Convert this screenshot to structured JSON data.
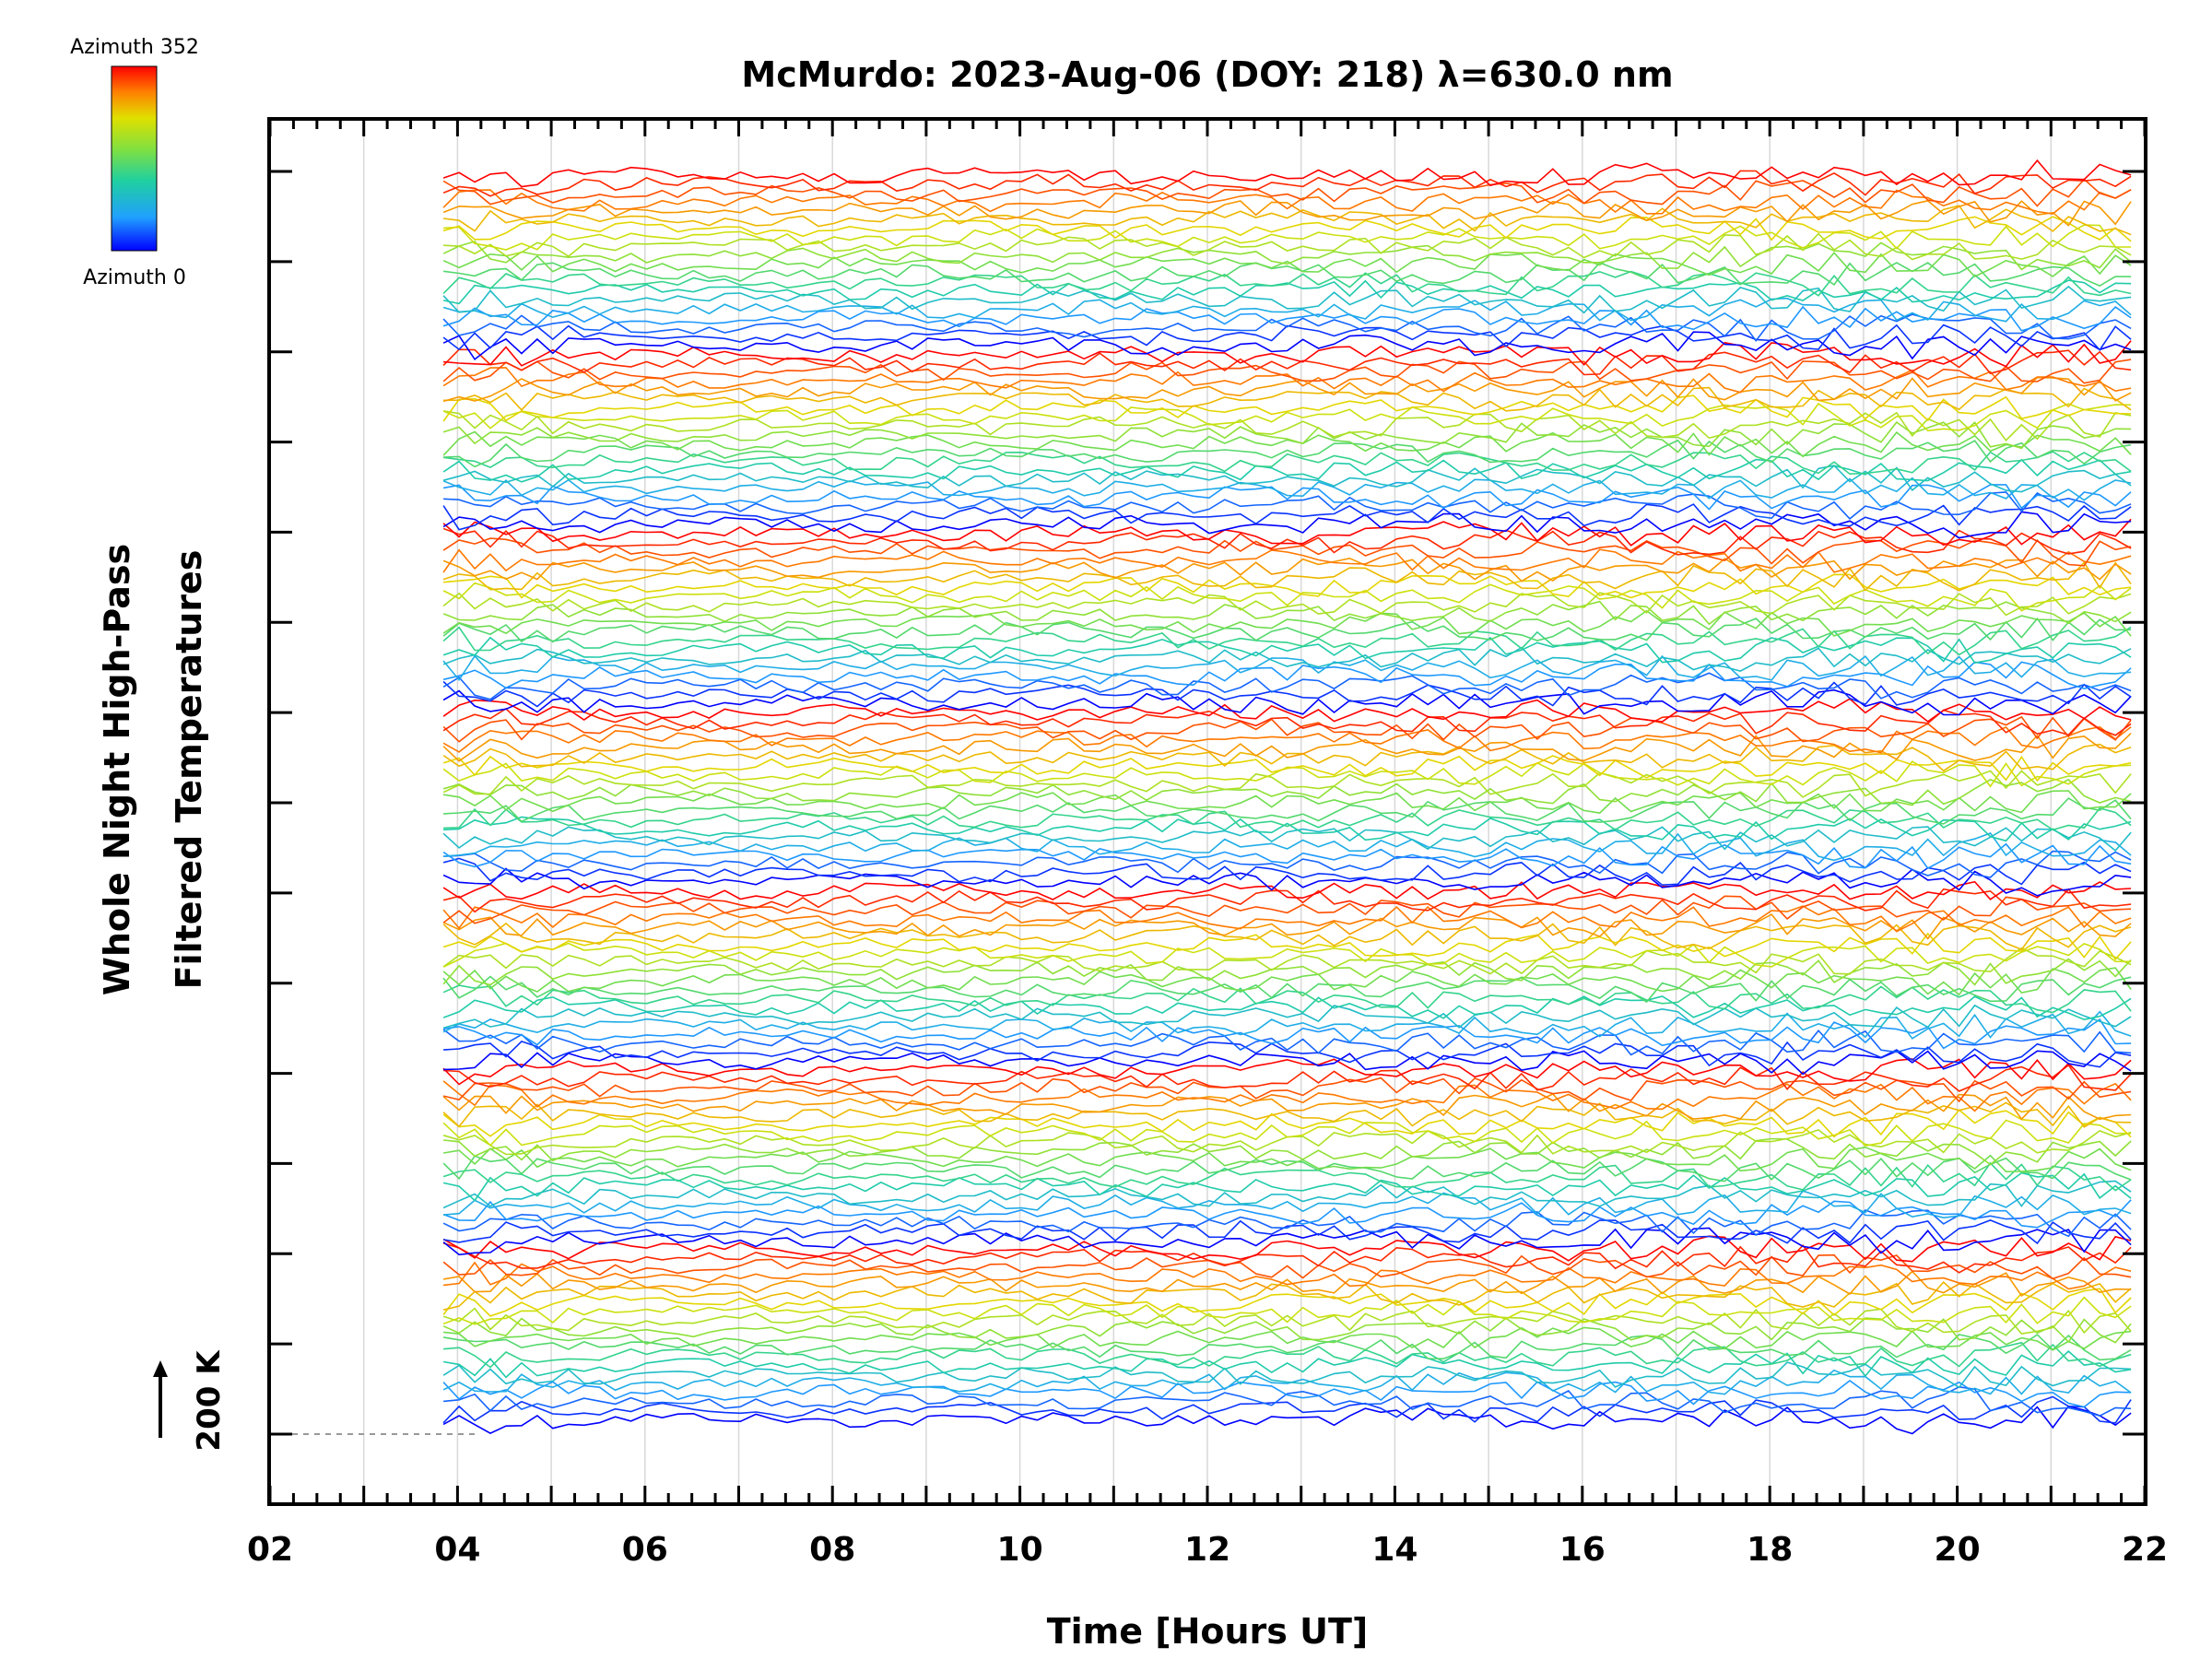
{
  "chart_data": {
    "type": "line",
    "title": "McMurdo: 2023-Aug-06 (DOY: 218) λ=630.0 nm",
    "xlabel": "Time [Hours UT]",
    "ylabel_line1": "Whole Night High-Pass",
    "ylabel_line2": "Filtered Temperatures",
    "xlim": [
      2,
      22
    ],
    "x_tick_labels": [
      "02",
      "04",
      "06",
      "08",
      "10",
      "12",
      "14",
      "16",
      "18",
      "20",
      "22"
    ],
    "x_tick_values": [
      2,
      4,
      6,
      8,
      10,
      12,
      14,
      16,
      18,
      20,
      22
    ],
    "data_start_hour": 3.85,
    "data_end_hour": 22.0,
    "sample_interval_hours": 0.1667,
    "scale_label": "200 K",
    "legend": {
      "top_label": "Azimuth 352",
      "bottom_label": "Azimuth 0",
      "colormap": [
        "#ff0000",
        "#ff8000",
        "#e0e000",
        "#80e040",
        "#20d0a0",
        "#20a0ff",
        "#0000ff"
      ]
    },
    "stacked_groups": 7,
    "traces_per_group": 20,
    "azimuth_range": [
      0,
      352
    ],
    "note": "Stacked high-pass filtered temperature traces, colored by azimuth"
  }
}
